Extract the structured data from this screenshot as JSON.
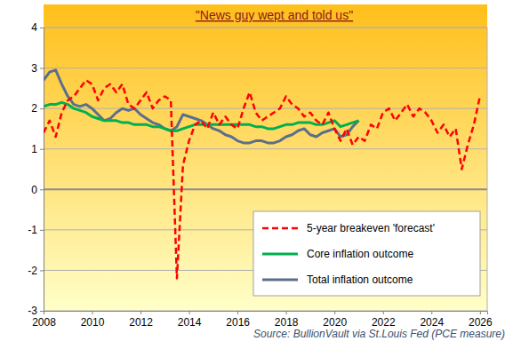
{
  "chart_data": {
    "type": "line",
    "title": "\"News guy wept and told us\"",
    "annotations": [
      "Source: BullionVault via St.Louis Fed (PCE measure)"
    ],
    "x": [
      2008,
      2008.25,
      2008.5,
      2008.75,
      2009,
      2009.25,
      2009.5,
      2009.75,
      2010,
      2010.25,
      2010.5,
      2010.75,
      2011,
      2011.25,
      2011.5,
      2011.75,
      2012,
      2012.25,
      2012.5,
      2012.75,
      2013,
      2013.25,
      2013.5,
      2013.75,
      2014,
      2014.25,
      2014.5,
      2014.75,
      2015,
      2015.25,
      2015.5,
      2015.75,
      2016,
      2016.25,
      2016.5,
      2016.75,
      2017,
      2017.25,
      2017.5,
      2017.75,
      2018,
      2018.25,
      2018.5,
      2018.75,
      2019,
      2019.25,
      2019.5,
      2019.75,
      2020,
      2020.25,
      2020.5,
      2020.75,
      2021,
      2021.25,
      2021.5,
      2021.75,
      2022,
      2022.25,
      2022.5,
      2022.75,
      2023,
      2023.25,
      2023.5,
      2023.75,
      2024,
      2024.25,
      2024.5,
      2024.75,
      2025,
      2025.25,
      2025.5,
      2025.75,
      2026
    ],
    "series": [
      {
        "name": "5-year breakeven 'forecast'",
        "color": "#ff0000",
        "line_style": "dashed",
        "marker": "none",
        "values": [
          1.4,
          1.7,
          1.3,
          1.9,
          2.2,
          2.3,
          2.5,
          2.7,
          2.6,
          2.2,
          2.5,
          2.6,
          2.4,
          2.6,
          2.1,
          2.0,
          2.2,
          2.4,
          2.0,
          2.2,
          2.3,
          2.2,
          -2.2,
          0.6,
          1.2,
          1.6,
          1.7,
          1.5,
          1.9,
          1.6,
          1.8,
          1.6,
          1.5,
          2.0,
          2.4,
          1.9,
          1.7,
          1.8,
          1.9,
          2.0,
          2.3,
          2.1,
          2.0,
          1.8,
          1.9,
          1.7,
          1.6,
          1.9,
          1.5,
          1.2,
          1.5,
          1.1,
          1.3,
          1.2,
          1.6,
          1.5,
          1.9,
          2.0,
          1.7,
          1.9,
          2.1,
          1.8,
          2.0,
          1.9,
          1.7,
          1.4,
          1.6,
          1.3,
          1.5,
          0.5,
          1.1,
          1.6,
          2.3
        ]
      },
      {
        "name": "Core inflation outcome",
        "color": "#00b050",
        "line_style": "solid",
        "marker": "none",
        "values": [
          2.05,
          2.1,
          2.1,
          2.15,
          2.1,
          2.0,
          1.95,
          1.9,
          1.8,
          1.75,
          1.7,
          1.7,
          1.7,
          1.65,
          1.65,
          1.6,
          1.6,
          1.6,
          1.55,
          1.55,
          1.5,
          1.45,
          1.45,
          1.5,
          1.55,
          1.6,
          1.6,
          1.6,
          1.6,
          1.6,
          1.6,
          1.6,
          1.6,
          1.6,
          1.6,
          1.55,
          1.55,
          1.5,
          1.5,
          1.55,
          1.6,
          1.6,
          1.65,
          1.65,
          1.65,
          1.6,
          1.6,
          1.65,
          1.7,
          1.55,
          1.6,
          1.65,
          1.7,
          null,
          null,
          null,
          null,
          null,
          null,
          null,
          null,
          null,
          null,
          null,
          null,
          null,
          null,
          null,
          null,
          null,
          null,
          null,
          null
        ]
      },
      {
        "name": "Total inflation outcome",
        "color": "#5b6f8c",
        "line_style": "solid",
        "marker": "none",
        "values": [
          2.7,
          2.9,
          2.95,
          2.6,
          2.3,
          2.1,
          2.05,
          2.1,
          2.0,
          1.85,
          1.7,
          1.75,
          1.9,
          2.0,
          1.95,
          2.0,
          1.85,
          1.75,
          1.65,
          1.6,
          1.5,
          1.45,
          1.55,
          1.85,
          1.8,
          1.75,
          1.7,
          1.6,
          1.5,
          1.45,
          1.35,
          1.3,
          1.2,
          1.15,
          1.15,
          1.2,
          1.2,
          1.15,
          1.15,
          1.2,
          1.3,
          1.35,
          1.45,
          1.5,
          1.35,
          1.3,
          1.4,
          1.45,
          1.5,
          1.3,
          1.35,
          1.55,
          1.7,
          null,
          null,
          null,
          null,
          null,
          null,
          null,
          null,
          null,
          null,
          null,
          null,
          null,
          null,
          null,
          null,
          null,
          null,
          null,
          null
        ]
      }
    ],
    "xlim": [
      2008,
      2026.3
    ],
    "xticks": [
      2008,
      2010,
      2012,
      2014,
      2016,
      2018,
      2020,
      2022,
      2024,
      2026
    ],
    "ylim": [
      -3,
      4
    ],
    "yticks": [
      -3,
      -2,
      -1,
      0,
      1,
      2,
      3,
      4
    ],
    "grid": true,
    "legend": "lower right"
  }
}
